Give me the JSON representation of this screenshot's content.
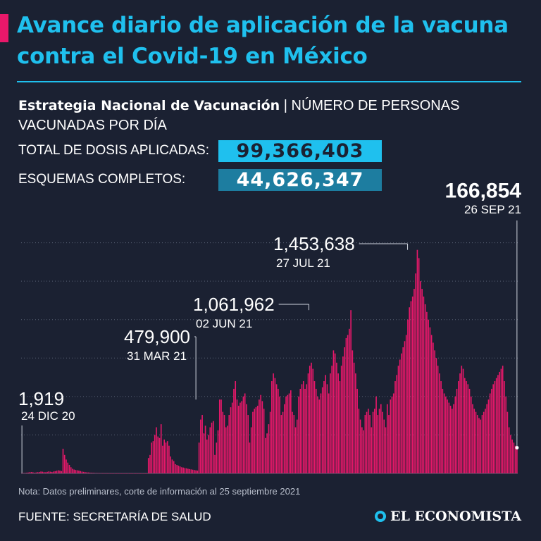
{
  "header": {
    "title": "Avance diario de aplicación de la vacuna contra el Covid-19 en México",
    "subtitle_strong": "Estrategia Nacional de Vacunación",
    "subtitle_rest": " | NÚMERO DE PERSONAS VACUNADAS POR DÍA"
  },
  "stats": {
    "total_label": "TOTAL DE DOSIS APLICADAS:",
    "total_value": "99,366,403",
    "complete_label": "ESQUEMAS COMPLETOS:",
    "complete_value": "44,626,347"
  },
  "footer": {
    "note": "Nota: Datos preliminares, corte de información al 25 septiembre 2021",
    "source": "FUENTE: SECRETARÍA DE SALUD",
    "brand": "EL ECONOMISTA"
  },
  "colors": {
    "bar": "#e8186a",
    "accent": "#1fc0ee",
    "background": "#1b2132",
    "grid": "#5a6275"
  },
  "chart_data": {
    "type": "bar",
    "x_start": "2020-12-24",
    "x_end": "2021-09-26",
    "ylim": [
      0,
      1750000
    ],
    "grid": true,
    "annotations": [
      {
        "value": "1,919",
        "date": "24 DIC 20",
        "x": "2020-12-24",
        "y": 1919
      },
      {
        "value": "479,900",
        "date": "31 MAR 21",
        "x": "2021-03-31",
        "y": 479900
      },
      {
        "value": "1,061,962",
        "date": "02 JUN 21",
        "x": "2021-06-02",
        "y": 1061962
      },
      {
        "value": "1,453,638",
        "date": "27 JUL 21",
        "x": "2021-07-27",
        "y": 1453638
      },
      {
        "value": "166,854",
        "date": "26 SEP 21",
        "x": "2021-09-26",
        "y": 166854
      }
    ],
    "series": [
      {
        "values": [
          1919,
          2500,
          3000,
          4000,
          5500,
          8000,
          9000,
          7000,
          4000,
          6000,
          8000,
          9000,
          12000,
          11000,
          9000,
          7000,
          10000,
          13000,
          11000,
          9000,
          12000,
          14000,
          17000,
          20000,
          18000,
          15000,
          160000,
          120000,
          90000,
          70000,
          55000,
          40000,
          30000,
          25000,
          22000,
          20000,
          18000,
          15000,
          12000,
          10000,
          8000,
          7000,
          6000,
          5000,
          4000,
          3500,
          3000,
          2500,
          2000,
          1500,
          1200,
          1000,
          800,
          700,
          600,
          500,
          400,
          300,
          250,
          200,
          180,
          160,
          150,
          140,
          130,
          120,
          110,
          100,
          90,
          80,
          70,
          60,
          50,
          40,
          30,
          25,
          20,
          15,
          10,
          5,
          100000,
          120000,
          200000,
          210000,
          250000,
          300000,
          240000,
          230000,
          320000,
          180000,
          220000,
          200000,
          210000,
          180000,
          110000,
          90000,
          80000,
          60000,
          55000,
          50000,
          45000,
          40000,
          38000,
          35000,
          33000,
          30000,
          28000,
          26000,
          24000,
          22000,
          20000,
          18000,
          200000,
          350000,
          380000,
          260000,
          310000,
          220000,
          250000,
          300000,
          330000,
          340000,
          120000,
          200000,
          280000,
          480000,
          479900,
          400000,
          380000,
          300000,
          310000,
          380000,
          430000,
          460000,
          550000,
          600000,
          480000,
          440000,
          460000,
          470000,
          500000,
          520000,
          450000,
          380000,
          200000,
          300000,
          400000,
          420000,
          430000,
          440000,
          480000,
          510000,
          470000,
          420000,
          230000,
          260000,
          320000,
          400000,
          600000,
          650000,
          620000,
          580000,
          550000,
          500000,
          380000,
          400000,
          450000,
          500000,
          510000,
          520000,
          540000,
          400000,
          380000,
          300000,
          350000,
          500000,
          550000,
          580000,
          600000,
          550000,
          580000,
          650000,
          700000,
          720000,
          680000,
          600000,
          550000,
          500000,
          480000,
          520000,
          560000,
          600000,
          640000,
          580000,
          520000,
          650000,
          700000,
          800000,
          780000,
          720000,
          650000,
          600000,
          700000,
          760000,
          820000,
          880000,
          900000,
          940000,
          1061962,
          800000,
          720000,
          650000,
          550000,
          420000,
          350000,
          300000,
          280000,
          380000,
          400000,
          420000,
          380000,
          300000,
          400000,
          420000,
          500000,
          380000,
          420000,
          450000,
          400000,
          350000,
          300000,
          450000,
          380000,
          480000,
          500000,
          520000,
          600000,
          640000,
          700000,
          740000,
          780000,
          820000,
          860000,
          900000,
          1000000,
          1080000,
          1120000,
          1150000,
          1200000,
          1300000,
          1453638,
          1400000,
          1250000,
          1200000,
          1150000,
          1100000,
          1050000,
          1000000,
          950000,
          900000,
          850000,
          800000,
          750000,
          700000,
          650000,
          600000,
          550000,
          520000,
          500000,
          480000,
          460000,
          440000,
          420000,
          450000,
          500000,
          550000,
          600000,
          650000,
          700000,
          680000,
          620000,
          600000,
          580000,
          550000,
          500000,
          450000,
          420000,
          400000,
          380000,
          360000,
          350000,
          380000,
          400000,
          420000,
          450000,
          480000,
          520000,
          550000,
          580000,
          600000,
          620000,
          640000,
          660000,
          680000,
          700000,
          600000,
          500000,
          400000,
          300000,
          250000,
          220000,
          200000,
          180000,
          166854
        ]
      }
    ]
  }
}
